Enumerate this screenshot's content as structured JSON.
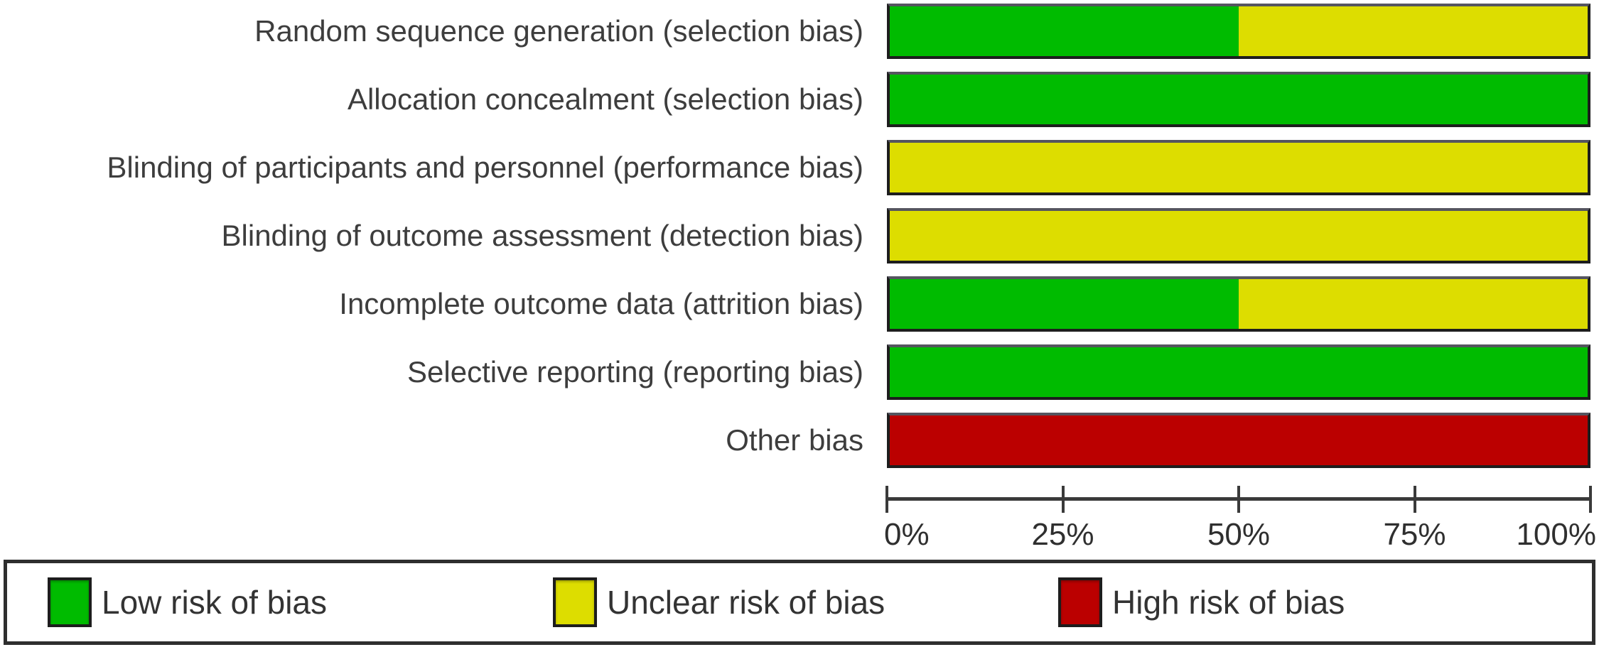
{
  "chart_data": {
    "type": "bar",
    "variant": "horizontal-stacked",
    "title": "",
    "xlabel": "",
    "ylabel": "",
    "xlim": [
      0,
      100
    ],
    "grid": false,
    "legend_position": "bottom",
    "categories": [
      "Random sequence generation (selection bias)",
      "Allocation concealment (selection bias)",
      "Blinding of participants and personnel (performance bias)",
      "Blinding of outcome assessment (detection bias)",
      "Incomplete outcome data (attrition bias)",
      "Selective reporting (reporting bias)",
      "Other bias"
    ],
    "series": [
      {
        "name": "Low risk of bias",
        "color": "#00bb00",
        "values": [
          50,
          100,
          0,
          0,
          50,
          100,
          0
        ]
      },
      {
        "name": "Unclear risk of bias",
        "color": "#dddd00",
        "values": [
          50,
          0,
          100,
          100,
          50,
          0,
          0
        ]
      },
      {
        "name": "High risk of bias",
        "color": "#bb0000",
        "values": [
          0,
          0,
          0,
          0,
          0,
          0,
          100
        ]
      }
    ],
    "x_ticks": [
      "0%",
      "25%",
      "50%",
      "75%",
      "100%"
    ]
  },
  "colors": {
    "low_risk": "#00bb00",
    "unclear_risk": "#dddd00",
    "high_risk": "#bb0000",
    "axis": "#3a3a3a",
    "text": "#3d3d3d"
  }
}
